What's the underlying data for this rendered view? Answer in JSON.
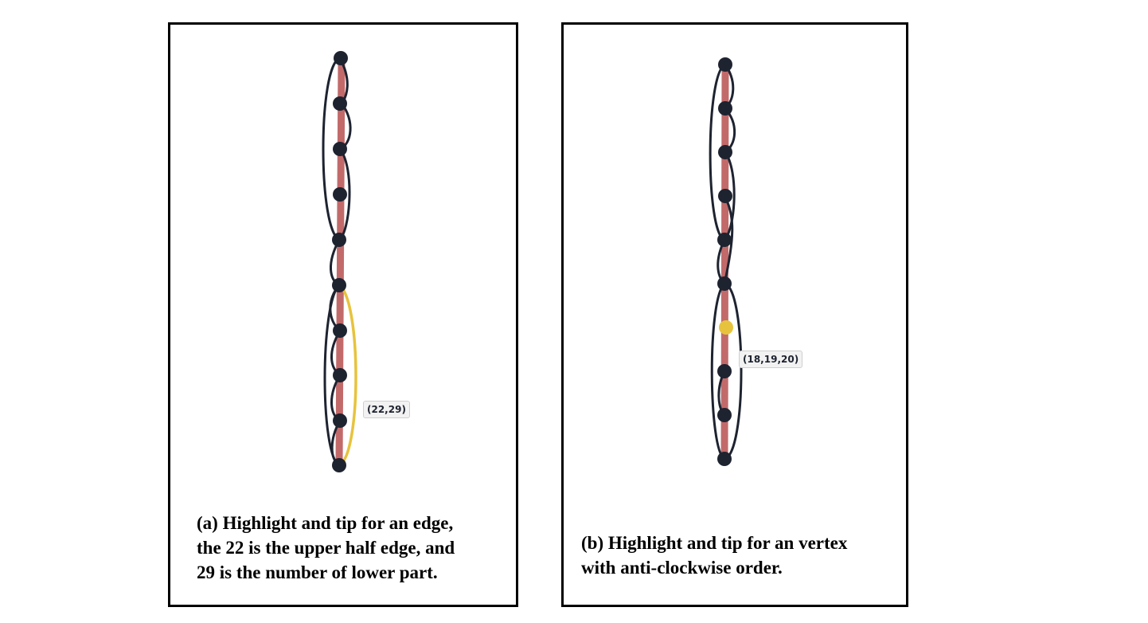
{
  "colors": {
    "half_edge": "#1e2330",
    "edge_fill": "#c26a6a",
    "vertex": "#1e2330",
    "highlight": "#e7c33d",
    "tooltip_bg": "#f2f2f2"
  },
  "panel_a": {
    "tooltip": "(22,29)",
    "caption_line1": "(a)  Highlight and tip for an edge,",
    "caption_line2": "the 22 is the upper half edge, and",
    "caption_line3": "29 is the number of lower part."
  },
  "panel_b": {
    "tooltip": "(18,19,20)",
    "caption_line1": "(b)  Highlight and tip for an vertex",
    "caption_line2": "with anti-clockwise order."
  }
}
